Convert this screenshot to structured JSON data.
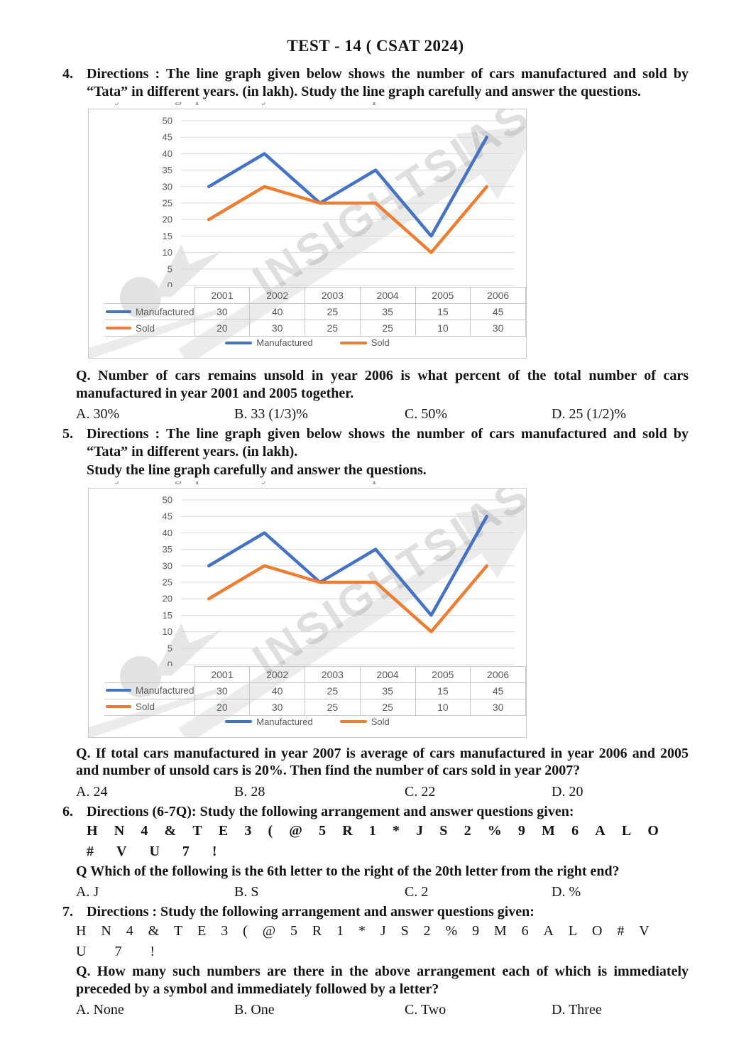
{
  "title": "TEST - 14  ( CSAT  2024)",
  "artifacts": {
    "cropped_line_text": "Study the line graph carefully and answer the questions."
  },
  "chart_data": [
    {
      "type": "line",
      "categories": [
        "2001",
        "2002",
        "2003",
        "2004",
        "2005",
        "2006"
      ],
      "series": [
        {
          "name": "Manufactured",
          "color": "#4472C4",
          "values": [
            30,
            40,
            25,
            35,
            15,
            45
          ]
        },
        {
          "name": "Sold",
          "color": "#ED7D31",
          "values": [
            20,
            30,
            25,
            25,
            10,
            30
          ]
        }
      ],
      "title": "",
      "xlabel": "",
      "ylabel": "",
      "ylim": [
        0,
        50
      ],
      "ytick_step": 5,
      "grid": true,
      "legend_position": "bottom",
      "data_table": true,
      "watermark": "INSIGHTSIAS"
    },
    {
      "type": "line",
      "categories": [
        "2001",
        "2002",
        "2003",
        "2004",
        "2005",
        "2006"
      ],
      "series": [
        {
          "name": "Manufactured",
          "color": "#4472C4",
          "values": [
            30,
            40,
            25,
            35,
            15,
            45
          ]
        },
        {
          "name": "Sold",
          "color": "#ED7D31",
          "values": [
            20,
            30,
            25,
            25,
            10,
            30
          ]
        }
      ],
      "title": "",
      "xlabel": "",
      "ylabel": "",
      "ylim": [
        0,
        50
      ],
      "ytick_step": 5,
      "grid": true,
      "legend_position": "bottom",
      "data_table": true,
      "watermark": "INSIGHTSIAS"
    }
  ],
  "questions": {
    "q4": {
      "number": "4.",
      "directions": "Directions : The line graph given below shows the number of cars manufactured and sold by “Tata” in different years. (in lakh). Study the line graph carefully and answer the questions.",
      "question": "Q. Number of cars remains unsold in year 2006 is what percent of the total number of cars manufactured in year 2001 and 2005 together.",
      "options": [
        "A. 30%",
        "B. 33 (1/3)%",
        "C. 50%",
        "D. 25 (1/2)%"
      ]
    },
    "q5": {
      "number": "5.",
      "directions": "Directions : The line graph given below shows the number of cars manufactured and sold by “Tata” in different years. (in lakh).",
      "directions_line2": "Study the line graph carefully and answer the questions.",
      "question": "Q. If total cars manufactured in year 2007 is average of cars manufactured in year 2006 and 2005 and number of unsold cars is 20%. Then find the number of cars sold in year 2007?",
      "options": [
        "A. 24",
        "B. 28",
        "C. 22",
        "D. 20"
      ]
    },
    "q6": {
      "number": "6.",
      "directions": "Directions (6-7Q): Study the following arrangement and answer questions given:",
      "arrangement_lines": [
        [
          "H",
          "N",
          "4",
          "&",
          "T",
          "E",
          "3",
          "(",
          "@",
          "5",
          "R",
          "1",
          "*",
          "J",
          "S",
          "2",
          "%",
          "9",
          "M",
          "6",
          "A",
          "L",
          "O"
        ],
        [
          "#",
          "V",
          "U",
          "7",
          "!"
        ]
      ],
      "question": "Q Which of the following is the 6th letter to the right of the 20th letter from the right end?",
      "options": [
        "A. J",
        "B. S",
        "C. 2",
        "D. %"
      ]
    },
    "q7": {
      "number": "7.",
      "directions": "Directions : Study the following arrangement and answer questions given:",
      "arrangement_lines": [
        [
          "H",
          "N",
          "4",
          "&",
          "T",
          "E",
          "3",
          "(",
          "@",
          "5",
          "R",
          "1",
          "*",
          "J",
          "S",
          "2",
          "%",
          "9",
          "M",
          "6",
          "A",
          "L",
          "O",
          "#",
          "V"
        ],
        [
          "U",
          "7",
          "!"
        ]
      ],
      "question": "Q. How many such numbers are there in the above arrangement each of which is immediately preceded by a symbol and immediately followed by a letter?",
      "options": [
        "A. None",
        "B. One",
        "C. Two",
        "D. Three"
      ]
    }
  }
}
